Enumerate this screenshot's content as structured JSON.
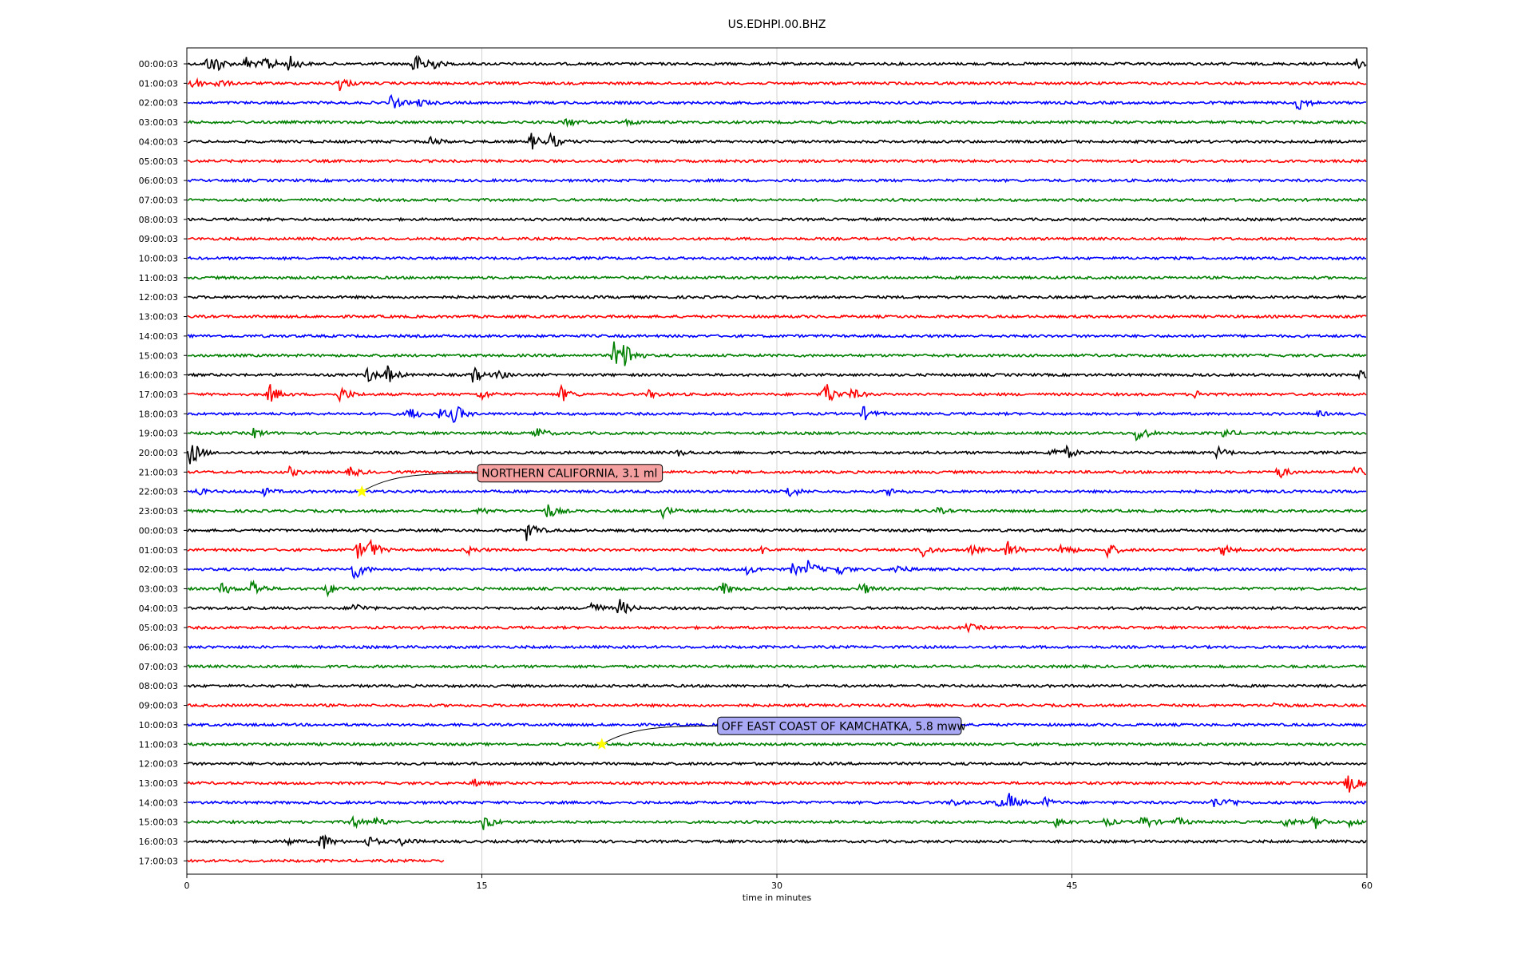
{
  "chart_data": {
    "type": "line",
    "title": "US.EDHPI.00.BHZ",
    "xlabel": "time in minutes",
    "ylabel": "",
    "xlim": [
      0,
      60
    ],
    "x_ticks": [
      0,
      15,
      30,
      45,
      60
    ],
    "grid": "vertical",
    "trace_colors": [
      "#000000",
      "#ff0000",
      "#0000ff",
      "#008000"
    ],
    "row_labels": [
      "00:00:03",
      "01:00:03",
      "02:00:03",
      "03:00:03",
      "04:00:03",
      "05:00:03",
      "06:00:03",
      "07:00:03",
      "08:00:03",
      "09:00:03",
      "10:00:03",
      "11:00:03",
      "12:00:03",
      "13:00:03",
      "14:00:03",
      "15:00:03",
      "16:00:03",
      "17:00:03",
      "18:00:03",
      "19:00:03",
      "20:00:03",
      "21:00:03",
      "22:00:03",
      "23:00:03",
      "00:00:03",
      "01:00:03",
      "02:00:03",
      "03:00:03",
      "04:00:03",
      "05:00:03",
      "06:00:03",
      "07:00:03",
      "08:00:03",
      "09:00:03",
      "10:00:03",
      "11:00:03",
      "12:00:03",
      "13:00:03",
      "14:00:03",
      "15:00:03",
      "16:00:03",
      "17:00:03"
    ],
    "last_row_end_minute": 13.1,
    "bursts": [
      [
        [
          1,
          0.7
        ],
        [
          1.4,
          0.9
        ],
        [
          3,
          0.8
        ],
        [
          4,
          1.0
        ],
        [
          5.2,
          0.9
        ],
        [
          11.5,
          1.4
        ],
        [
          12.2,
          1.0
        ],
        [
          59.5,
          0.5
        ]
      ],
      [
        [
          0.1,
          1.0
        ],
        [
          1.5,
          0.5
        ],
        [
          7.7,
          0.9
        ]
      ],
      [
        [
          10.4,
          0.8
        ],
        [
          11.8,
          0.4
        ],
        [
          56.5,
          0.9
        ]
      ],
      [
        [
          19.3,
          0.5
        ],
        [
          22.4,
          0.3
        ]
      ],
      [
        [
          12.4,
          0.5
        ],
        [
          17.5,
          0.9
        ],
        [
          18.5,
          0.8
        ]
      ],
      [],
      [],
      [],
      [],
      [],
      [],
      [],
      [],
      [],
      [],
      [
        [
          21.7,
          1.4
        ],
        [
          22.3,
          1.5
        ]
      ],
      [
        [
          9.2,
          0.8
        ],
        [
          10.2,
          0.9
        ],
        [
          14.5,
          0.9
        ],
        [
          15.8,
          0.5
        ],
        [
          59.7,
          0.6
        ]
      ],
      [
        [
          4.2,
          1.1
        ],
        [
          7.8,
          0.9
        ],
        [
          14.9,
          0.6
        ],
        [
          19,
          0.9
        ],
        [
          23.5,
          0.4
        ],
        [
          32.4,
          1.7
        ],
        [
          33.8,
          0.6
        ],
        [
          51.3,
          0.4
        ]
      ],
      [
        [
          11.3,
          0.8
        ],
        [
          12.9,
          0.6
        ],
        [
          13.6,
          1.0
        ],
        [
          34.4,
          0.7
        ],
        [
          57.4,
          0.3
        ]
      ],
      [
        [
          3.4,
          0.5
        ],
        [
          17.7,
          0.8
        ],
        [
          48.3,
          1.1
        ],
        [
          52.7,
          0.5
        ]
      ],
      [
        [
          0.2,
          1.5
        ],
        [
          25,
          0.3
        ],
        [
          43.9,
          0.6
        ],
        [
          44.7,
          0.6
        ],
        [
          52.4,
          0.6
        ]
      ],
      [
        [
          5.2,
          0.5
        ],
        [
          8.3,
          0.6
        ],
        [
          55.5,
          0.7
        ],
        [
          59.3,
          0.8
        ]
      ],
      [
        [
          0.5,
          0.4
        ],
        [
          3.9,
          0.4
        ],
        [
          30.6,
          0.7
        ],
        [
          35.7,
          0.4
        ]
      ],
      [
        [
          14.9,
          0.4
        ],
        [
          18.3,
          0.9
        ],
        [
          24.2,
          0.6
        ],
        [
          38.2,
          0.3
        ]
      ],
      [
        [
          17.3,
          1.2
        ]
      ],
      [
        [
          8.7,
          0.9
        ],
        [
          9.3,
          1.0
        ],
        [
          14.3,
          0.4
        ],
        [
          29.2,
          0.4
        ],
        [
          37.4,
          0.8
        ],
        [
          39.8,
          0.5
        ],
        [
          41.7,
          1.0
        ],
        [
          44.5,
          0.8
        ],
        [
          46.8,
          0.8
        ],
        [
          52.6,
          0.7
        ]
      ],
      [
        [
          8.5,
          1.2
        ],
        [
          28.5,
          0.5
        ],
        [
          30.8,
          0.6
        ],
        [
          31.6,
          0.9
        ],
        [
          33,
          0.8
        ],
        [
          36,
          0.6
        ]
      ],
      [
        [
          1.8,
          0.7
        ],
        [
          3.3,
          1.1
        ],
        [
          7.1,
          0.7
        ],
        [
          27.2,
          0.8
        ],
        [
          34.3,
          0.7
        ]
      ],
      [
        [
          8.5,
          0.6
        ],
        [
          20.5,
          0.9
        ],
        [
          22,
          1.0
        ]
      ],
      [
        [
          39.7,
          0.4
        ]
      ],
      [],
      [],
      [],
      [
        [
          55.2,
          0.3
        ]
      ],
      [],
      [],
      [],
      [
        [
          14.6,
          0.4
        ],
        [
          59,
          1.2
        ]
      ],
      [
        [
          38.9,
          0.4
        ],
        [
          41.1,
          0.6
        ],
        [
          41.8,
          0.9
        ],
        [
          43.6,
          0.5
        ],
        [
          52.2,
          0.6
        ],
        [
          53,
          0.4
        ]
      ],
      [
        [
          8.4,
          0.7
        ],
        [
          9.6,
          0.5
        ],
        [
          15.1,
          0.9
        ],
        [
          44.2,
          0.5
        ],
        [
          46.7,
          0.4
        ],
        [
          48.6,
          0.8
        ],
        [
          50.3,
          0.5
        ],
        [
          55.8,
          0.5
        ],
        [
          57.3,
          0.8
        ],
        [
          59.1,
          0.4
        ]
      ],
      [
        [
          5,
          0.4
        ],
        [
          6.8,
          1.1
        ],
        [
          9.2,
          0.6
        ],
        [
          10.9,
          0.5
        ]
      ]
    ],
    "annotations": [
      {
        "text": "NORTHERN CALIFORNIA, 3.1 ml",
        "row": 22,
        "x": 8.9,
        "box_color": "#f4a0a0"
      },
      {
        "text": "OFF EAST COAST OF KAMCHATKA, 5.8 mww",
        "row": 35,
        "x": 21.1,
        "box_color": "#a8a8f4"
      }
    ],
    "marker_color": "#ffff00"
  }
}
